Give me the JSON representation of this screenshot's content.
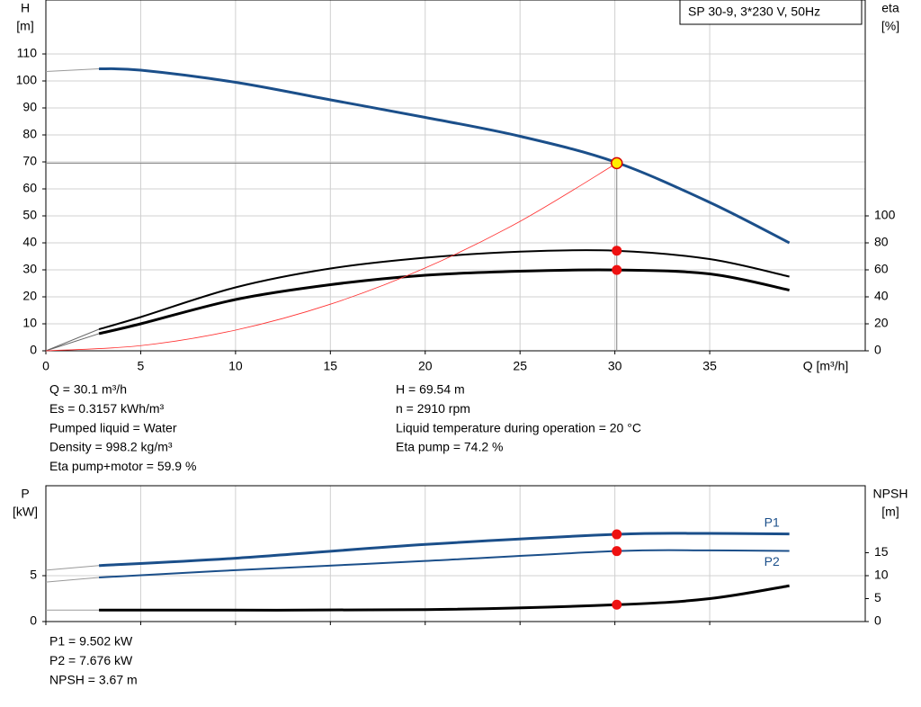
{
  "chart_data": [
    {
      "type": "line",
      "title": "SP 30-9, 3*230 V, 50Hz",
      "y_label": [
        "H",
        "[m]"
      ],
      "y2_label": [
        "eta",
        "[%]"
      ],
      "x_label": "Q [m³/h]",
      "xlim": [
        0,
        43.2
      ],
      "xticks": [
        0,
        5,
        10,
        15,
        20,
        25,
        30,
        35
      ],
      "ylim": [
        0,
        130
      ],
      "yticks": [
        0,
        10,
        20,
        30,
        40,
        50,
        60,
        70,
        80,
        90,
        100,
        110
      ],
      "y2lim": [
        0,
        260
      ],
      "y2ticks": [
        0,
        20,
        40,
        60,
        80,
        100
      ],
      "grid": true,
      "series": [
        {
          "x": [
            0,
            2.8
          ],
          "values": [
            103.5,
            104.5
          ],
          "color": "#999999",
          "width": 1
        },
        {
          "x": [
            2.8,
            5,
            10,
            15,
            20,
            25,
            30,
            35,
            39.2
          ],
          "values": [
            104.5,
            104,
            99.5,
            93,
            86.5,
            79.5,
            70,
            55,
            40
          ],
          "color": "#1b4f8a",
          "width": 3
        },
        {
          "x": [
            0,
            2.8
          ],
          "values": [
            0,
            16
          ],
          "color": "#666666",
          "width": 1,
          "axis": "y2"
        },
        {
          "x": [
            2.8,
            5,
            10,
            15,
            20,
            25,
            30,
            35,
            39.2
          ],
          "values": [
            16,
            25,
            47,
            61,
            69,
            73.5,
            74.2,
            68,
            55
          ],
          "color": "#000000",
          "width": 2,
          "axis": "y2"
        },
        {
          "x": [
            0,
            2.8
          ],
          "values": [
            0,
            12.7
          ],
          "color": "#666666",
          "width": 1,
          "axis": "y2"
        },
        {
          "x": [
            2.8,
            5,
            10,
            15,
            20,
            25,
            30,
            35,
            39.2
          ],
          "values": [
            12.7,
            20,
            38,
            49,
            56,
            59,
            59.9,
            57,
            45
          ],
          "color": "#000000",
          "width": 3,
          "axis": "y2"
        },
        {
          "x": [
            0,
            5,
            10,
            15,
            20,
            25,
            30.1
          ],
          "values": [
            0,
            1.92,
            7.68,
            17.27,
            30.7,
            47.97,
            69.54
          ],
          "color": "#ff3030",
          "width": 0.8
        }
      ],
      "operating_point": {
        "x": 30.1,
        "y": 69.54
      },
      "markers": [
        {
          "x": 30.1,
          "y": 74.2,
          "axis": "y2"
        },
        {
          "x": 30.1,
          "y": 59.9,
          "axis": "y2"
        }
      ],
      "notes_left": [
        "Q = 30.1 m³/h",
        "Es = 0.3157 kWh/m³",
        "Pumped liquid = Water",
        "Density = 998.2 kg/m³",
        "Eta pump+motor = 59.9 %"
      ],
      "notes_right": [
        "H = 69.54 m",
        "n = 2910 rpm",
        "Liquid temperature during operation = 20 °C",
        "Eta pump = 74.2 %"
      ]
    },
    {
      "type": "line",
      "y_label": [
        "P",
        "[kW]"
      ],
      "y2_label": [
        "NPSH",
        "[m]"
      ],
      "xlim": [
        0,
        43.2
      ],
      "xticks": [
        0,
        5,
        10,
        15,
        20,
        25,
        30,
        35
      ],
      "ylim": [
        0,
        14.8
      ],
      "yticks": [
        0,
        5
      ],
      "y2lim": [
        0,
        29.6
      ],
      "y2ticks": [
        0,
        5,
        10,
        15
      ],
      "grid": true,
      "series": [
        {
          "x": [
            0,
            2.8
          ],
          "values": [
            5.6,
            6.1
          ],
          "color": "#999999",
          "width": 1
        },
        {
          "name": "P1",
          "x": [
            2.8,
            10,
            20,
            30.1,
            35,
            39.2
          ],
          "values": [
            6.1,
            6.9,
            8.4,
            9.502,
            9.6,
            9.55
          ],
          "color": "#1b4f8a",
          "width": 3
        },
        {
          "x": [
            0,
            2.8
          ],
          "values": [
            4.3,
            4.8
          ],
          "color": "#999999",
          "width": 1
        },
        {
          "name": "P2",
          "x": [
            2.8,
            10,
            20,
            30.1,
            35,
            39.2
          ],
          "values": [
            4.8,
            5.6,
            6.6,
            7.676,
            7.75,
            7.7
          ],
          "color": "#1b4f8a",
          "width": 2
        },
        {
          "x": [
            0,
            2.8
          ],
          "values": [
            2.5,
            2.5
          ],
          "color": "#999999",
          "width": 1,
          "axis": "y2"
        },
        {
          "x": [
            2.8,
            20,
            30.1,
            35,
            39.2
          ],
          "values": [
            2.5,
            2.6,
            3.67,
            5.0,
            7.8
          ],
          "color": "#000000",
          "width": 3,
          "axis": "y2"
        }
      ],
      "markers": [
        {
          "x": 30.1,
          "y": 9.502
        },
        {
          "x": 30.1,
          "y": 7.676
        },
        {
          "x": 30.1,
          "y": 3.67,
          "axis": "y2"
        }
      ],
      "notes_left": [
        "P1 = 9.502 kW",
        "P2 = 7.676 kW",
        "NPSH = 3.67 m"
      ]
    }
  ]
}
